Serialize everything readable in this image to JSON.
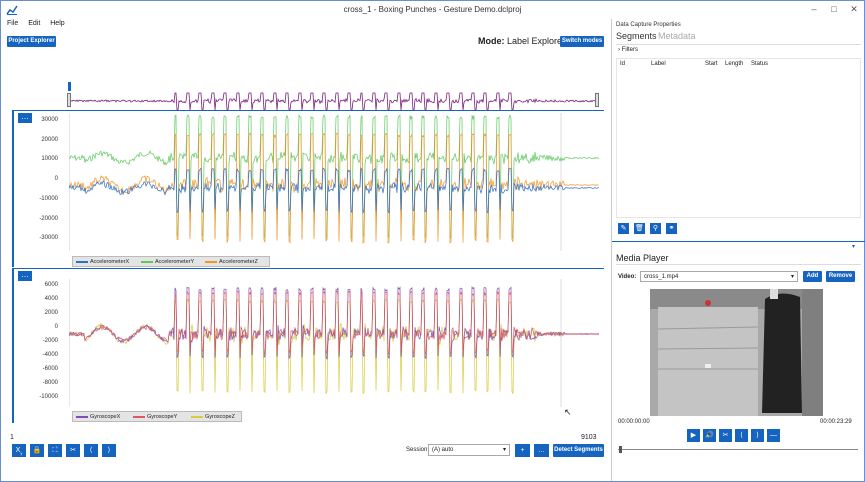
{
  "window": {
    "title": "cross_1 - Boxing Punches - Gesture Demo.dclproj",
    "min_icon": "minimize-icon",
    "max_icon": "maximize-icon",
    "close_icon": "close-icon"
  },
  "menu": [
    "File",
    "Edit",
    "Help"
  ],
  "toolbar": {
    "project_explorer": "Project Explorer",
    "mode_label": "Mode:",
    "mode_value": "Label Explorer",
    "switch_modes": "Switch modes"
  },
  "accel_chart": {
    "yticks": [
      "30000",
      "20000",
      "10000",
      "0",
      "-10000",
      "-20000",
      "-30000"
    ],
    "legend": [
      "AccelerometerX",
      "AccelerometerY",
      "AccelerometerZ"
    ],
    "colors": [
      "#2a6fc9",
      "#5cc85c",
      "#f0952a"
    ]
  },
  "gyro_chart": {
    "yticks": [
      "6000",
      "4000",
      "2000",
      "0",
      "-2000",
      "-4000",
      "-6000",
      "-8000",
      "-10000"
    ],
    "legend": [
      "GyroscopeX",
      "GyroscopeY",
      "GyroscopeZ"
    ],
    "colors": [
      "#7b4fb3",
      "#d85a6a",
      "#d6cc3c"
    ]
  },
  "overview_color": "#7a1f7a",
  "range": {
    "start": "1",
    "end": "9103"
  },
  "session": {
    "label": "Session:",
    "value": "(A) auto"
  },
  "detect_segments": "Detect Segments",
  "right": {
    "panel_title": "Data Capture Properties",
    "tab_segments": "Segments",
    "tab_metadata": "Metadata",
    "filters": "Filters",
    "columns": [
      "Id",
      "Label",
      "Start",
      "Length",
      "Status"
    ],
    "media_title": "Media Player",
    "video_label": "Video:",
    "video_value": "cross_1.mp4",
    "add": "Add",
    "remove": "Remove",
    "time_start": "00:00:00:00",
    "time_end": "00:00:23:29"
  },
  "accent": "#1565c0"
}
